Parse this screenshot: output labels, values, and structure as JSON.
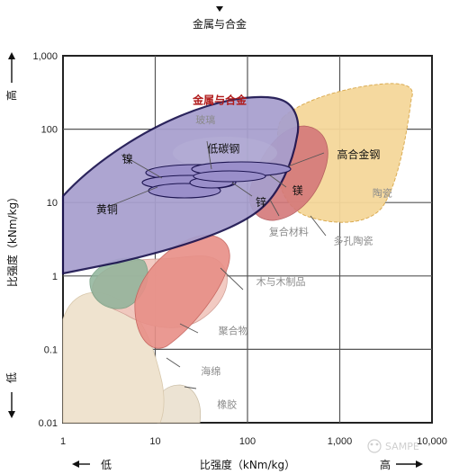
{
  "chart_data": {
    "type": "scatter",
    "title": "金属与合金",
    "xlabel": "比强度（kNm/kg）",
    "ylabel": "比强度（kNm/kg）",
    "x_scale": "log",
    "y_scale": "log",
    "xlim": [
      1,
      10000
    ],
    "ylim": [
      0.01,
      1000
    ],
    "x_ticks": [
      "1",
      "10",
      "100",
      "1,000",
      "10,000"
    ],
    "y_ticks": [
      "0.01",
      "0.1",
      "1",
      "10",
      "100",
      "1,000"
    ],
    "x_direction": {
      "low": "低",
      "high": "高"
    },
    "y_direction": {
      "low": "低",
      "high": "高"
    },
    "grid": true,
    "watermark": "SAMPE",
    "regions": [
      {
        "name": "橡胶",
        "color": "#efe6d8"
      },
      {
        "name": "海绵",
        "color": "#efe3cf"
      },
      {
        "name": "木与木制品",
        "color": "#f1c6bd"
      },
      {
        "name": "聚合物",
        "color": "#e88f87"
      },
      {
        "name": "复合材料",
        "color": "#d4787a"
      },
      {
        "name": "陶瓷",
        "color": "#f5d79a"
      },
      {
        "name": "多孔陶瓷",
        "color": "#9fbba0"
      },
      {
        "name": "金属与合金",
        "color": "#a79fce"
      },
      {
        "name": "玻璃",
        "color": "#b7b3d8"
      }
    ],
    "annotations": [
      {
        "text": "金属与合金",
        "x": 50,
        "y": 220,
        "style": "title"
      },
      {
        "text": "玻璃",
        "x": 35,
        "y": 120,
        "style": "grey"
      },
      {
        "text": "低碳钢",
        "x": 55,
        "y": 48,
        "style": "dark"
      },
      {
        "text": "镍",
        "x": 5,
        "y": 35,
        "style": "dark"
      },
      {
        "text": "高合金钢",
        "x": 1600,
        "y": 40,
        "style": "dark"
      },
      {
        "text": "陶瓷",
        "x": 2900,
        "y": 12,
        "style": "grey"
      },
      {
        "text": "锌",
        "x": 140,
        "y": 9,
        "style": "dark"
      },
      {
        "text": "镁",
        "x": 350,
        "y": 13,
        "style": "dark"
      },
      {
        "text": "黄铜",
        "x": 3,
        "y": 7.2,
        "style": "dark"
      },
      {
        "text": "复合材料",
        "x": 280,
        "y": 3.6,
        "style": "grey"
      },
      {
        "text": "多孔陶瓷",
        "x": 1400,
        "y": 2.7,
        "style": "grey"
      },
      {
        "text": "木与木制品",
        "x": 230,
        "y": 0.75,
        "style": "grey"
      },
      {
        "text": "聚合物",
        "x": 70,
        "y": 0.16,
        "style": "grey"
      },
      {
        "text": "海绵",
        "x": 40,
        "y": 0.045,
        "style": "grey"
      },
      {
        "text": "橡胶",
        "x": 60,
        "y": 0.016,
        "style": "grey"
      }
    ]
  }
}
